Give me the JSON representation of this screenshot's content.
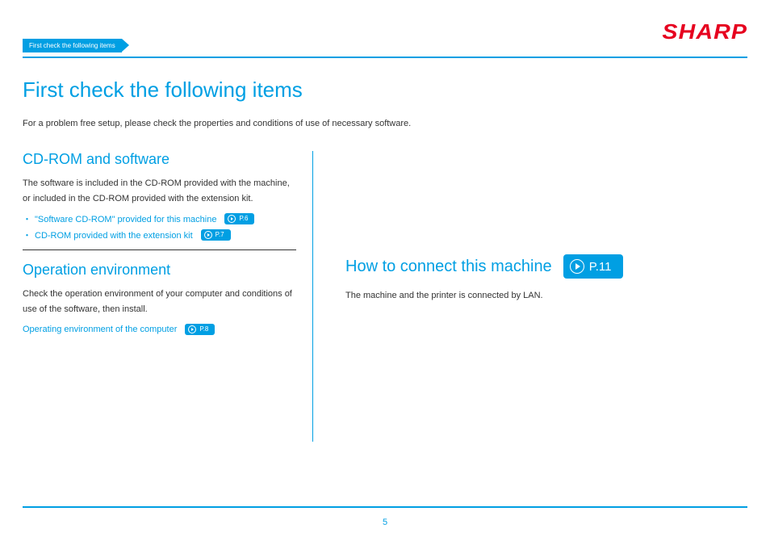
{
  "brand": "SHARP",
  "breadcrumb": "First check the following items",
  "title": "First check the following items",
  "intro": "For a problem free setup, please check the properties and conditions of use of necessary software.",
  "page_number": "5",
  "colors": {
    "accent": "#009fe3",
    "brand": "#e6001f",
    "text": "#333333",
    "background": "#ffffff"
  },
  "left": {
    "cdrom": {
      "title": "CD-ROM and software",
      "text": "The software is included in the CD-ROM provided with the machine, or included in the CD-ROM provided with the extension kit.",
      "links": [
        {
          "bullet": "・",
          "label": "\"Software CD-ROM\" provided for this machine",
          "page": "P.6"
        },
        {
          "bullet": "・",
          "label": "CD-ROM provided with the extension kit",
          "page": "P.7"
        }
      ]
    },
    "openv": {
      "title": "Operation environment",
      "text": "Check the operation environment of your computer and conditions of use of the software, then  install.",
      "link": {
        "label": "Operating environment of the computer",
        "page": "P.8"
      }
    }
  },
  "right": {
    "connect": {
      "title": "How to connect this machine",
      "page": "P.11",
      "text": "The machine and the printer is connected by LAN."
    }
  }
}
